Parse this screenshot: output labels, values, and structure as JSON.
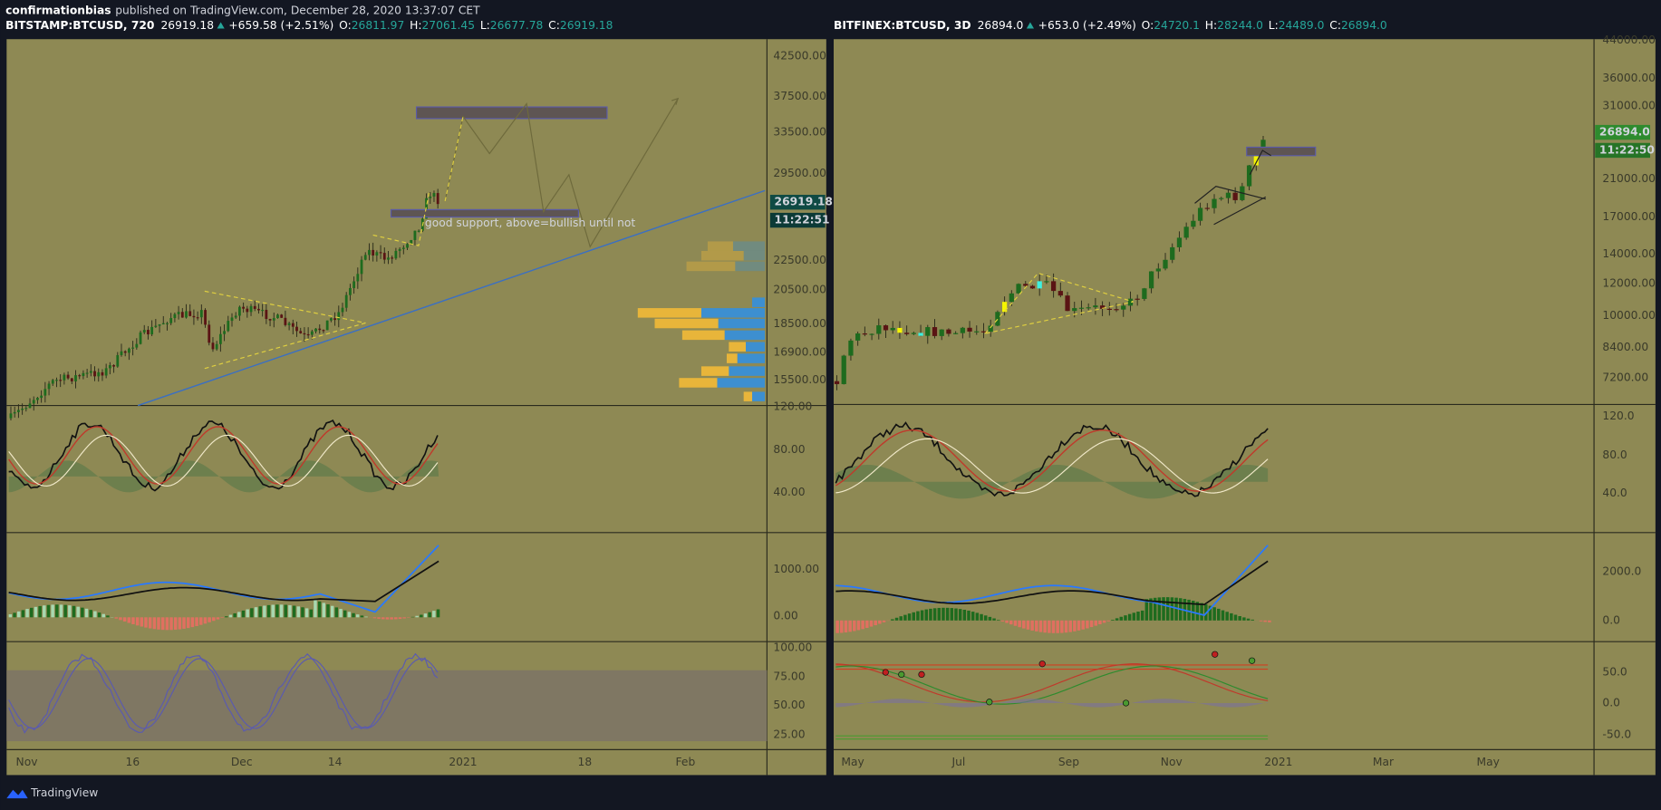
{
  "header": {
    "author": "confirmationbias",
    "text": "published on TradingView.com, December 28, 2020 13:37:07 CET"
  },
  "panes": [
    {
      "symbol": "BITSTAMP:BTCUSD, 720",
      "last": "26919.18",
      "change": "+659.58 (+2.51%)",
      "ohlc": [
        [
          "O:",
          "26811.97"
        ],
        [
          "H:",
          "27061.45"
        ],
        [
          "L:",
          "26677.78"
        ],
        [
          "C:",
          "26919.18"
        ]
      ],
      "price_axis": [
        "42500.00",
        "37500.00",
        "33500.00",
        "29500.00",
        "22500.00",
        "20500.00",
        "18500.00",
        "16900.00",
        "15500.00"
      ],
      "osc_axis": [
        "120.00",
        "80.00",
        "40.00"
      ],
      "macd_axis": [
        "1000.00",
        "0.00"
      ],
      "stoch_axis": [
        "100.00",
        "75.00",
        "50.00",
        "25.00"
      ],
      "time_axis": [
        "Nov",
        "16",
        "Dec",
        "14",
        "2021",
        "18",
        "Feb"
      ],
      "price_badge": "26919.18",
      "countdown": "11:22:51",
      "annotation": "good support, above=bullish until not"
    },
    {
      "symbol": "BITFINEX:BTCUSD, 3D",
      "last": "26894.0",
      "change": "+653.0 (+2.49%)",
      "ohlc": [
        [
          "O:",
          "24720.1"
        ],
        [
          "H:",
          "28244.0"
        ],
        [
          "L:",
          "24489.0"
        ],
        [
          "C:",
          "26894.0"
        ]
      ],
      "price_axis": [
        "44000.00",
        "36000.00",
        "31000.00",
        "21000.00",
        "17000.00",
        "14000.00",
        "12000.00",
        "10000.00",
        "8400.00",
        "7200.00"
      ],
      "osc_axis": [
        "120.0",
        "80.0",
        "40.0"
      ],
      "macd_axis": [
        "2000.0",
        "0.0"
      ],
      "stoch_axis": [
        "50.0",
        "0.0",
        "-50.0"
      ],
      "time_axis": [
        "May",
        "Jul",
        "Sep",
        "Nov",
        "2021",
        "Mar",
        "May"
      ],
      "price_badge": "26894.0",
      "countdown": "11:22:50"
    }
  ],
  "footer": "TradingView"
}
